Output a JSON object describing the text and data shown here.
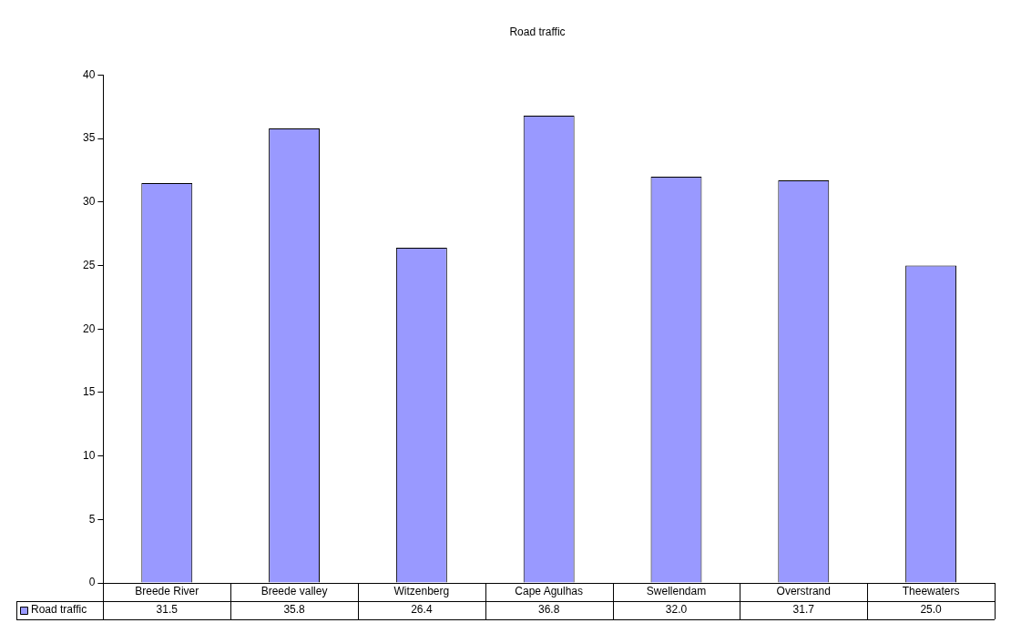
{
  "chart_data": {
    "type": "bar",
    "title": "Road traffic",
    "categories": [
      "Breede River",
      "Breede valley",
      "Witzenberg",
      "Cape Agulhas",
      "Swellendam",
      "Overstrand",
      "Theewaters"
    ],
    "series": [
      {
        "name": "Road traffic",
        "color": "#9999ff",
        "values": [
          31.5,
          35.8,
          26.4,
          36.8,
          32.0,
          31.7,
          25.0
        ],
        "value_labels": [
          "31.5",
          "35.8",
          "26.4",
          "36.8",
          "32.0",
          "31.7",
          "25.0"
        ]
      }
    ],
    "ylim": [
      0,
      40
    ],
    "yticks": [
      0,
      5,
      10,
      15,
      20,
      25,
      30,
      35,
      40
    ],
    "grid": false,
    "legend": "bottom left"
  }
}
